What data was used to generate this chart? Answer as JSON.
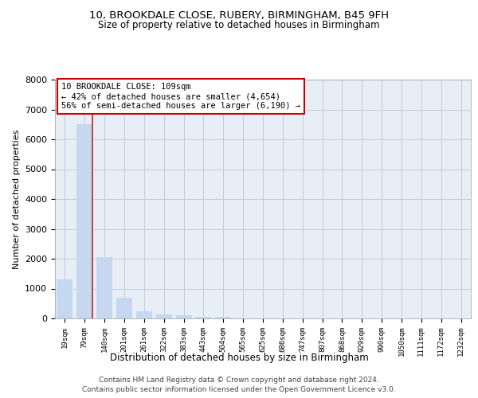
{
  "title": "10, BROOKDALE CLOSE, RUBERY, BIRMINGHAM, B45 9FH",
  "subtitle": "Size of property relative to detached houses in Birmingham",
  "xlabel": "Distribution of detached houses by size in Birmingham",
  "ylabel": "Number of detached properties",
  "footer1": "Contains HM Land Registry data © Crown copyright and database right 2024.",
  "footer2": "Contains public sector information licensed under the Open Government Licence v3.0.",
  "annotation_title": "10 BROOKDALE CLOSE: 109sqm",
  "annotation_line2": "← 42% of detached houses are smaller (4,654)",
  "annotation_line3": "56% of semi-detached houses are larger (6,190) →",
  "categories": [
    "19sqm",
    "79sqm",
    "140sqm",
    "201sqm",
    "261sqm",
    "322sqm",
    "383sqm",
    "443sqm",
    "504sqm",
    "565sqm",
    "625sqm",
    "686sqm",
    "747sqm",
    "807sqm",
    "868sqm",
    "929sqm",
    "990sqm",
    "1050sqm",
    "1111sqm",
    "1172sqm",
    "1232sqm"
  ],
  "values": [
    1300,
    6500,
    2050,
    700,
    250,
    130,
    100,
    60,
    50,
    5,
    5,
    5,
    5,
    5,
    5,
    5,
    5,
    5,
    5,
    5,
    5
  ],
  "bar_color": "#c5d8ef",
  "highlight_color": "#cc2222",
  "ylim": [
    0,
    8000
  ],
  "yticks": [
    0,
    1000,
    2000,
    3000,
    4000,
    5000,
    6000,
    7000,
    8000
  ],
  "background_color": "#ffffff",
  "axes_background": "#e8eef5",
  "grid_color": "#b8c8d8",
  "annotation_box_color": "#cc0000",
  "highlight_bar_index": 1
}
